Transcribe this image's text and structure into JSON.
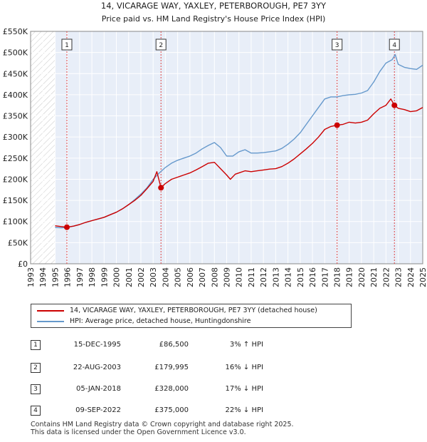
{
  "chart_data": {
    "type": "line",
    "title": "14, VICARAGE WAY, YAXLEY, PETERBOROUGH, PE7 3YY",
    "subtitle": "Price paid vs. HM Land Registry's House Price Index (HPI)",
    "xlabel": "",
    "ylabel": "",
    "xlim": [
      1993,
      2025
    ],
    "ylim": [
      0,
      550000
    ],
    "x_ticks": [
      1993,
      1994,
      1995,
      1996,
      1997,
      1998,
      1999,
      2000,
      2001,
      2002,
      2003,
      2004,
      2005,
      2006,
      2007,
      2008,
      2009,
      2010,
      2011,
      2012,
      2013,
      2014,
      2015,
      2016,
      2017,
      2018,
      2019,
      2020,
      2021,
      2022,
      2023,
      2024,
      2025
    ],
    "y_ticks": [
      0,
      50000,
      100000,
      150000,
      200000,
      250000,
      300000,
      350000,
      400000,
      450000,
      500000,
      550000
    ],
    "y_tick_labels": [
      "£0",
      "£50K",
      "£100K",
      "£150K",
      "£200K",
      "£250K",
      "£300K",
      "£350K",
      "£400K",
      "£450K",
      "£500K",
      "£550K"
    ],
    "grid": true,
    "hatched_before": 1995.0,
    "shaded_band_color": "#e8eef8",
    "series": [
      {
        "name": "14, VICARAGE WAY, YAXLEY, PETERBOROUGH, PE7 3YY (detached house)",
        "color": "#cc0000",
        "x": [
          1995.0,
          1995.5,
          1995.96,
          1996.5,
          1997.0,
          1997.5,
          1998.0,
          1998.5,
          1999.0,
          1999.5,
          2000.0,
          2000.5,
          2001.0,
          2001.5,
          2002.0,
          2002.5,
          2003.0,
          2003.3,
          2003.64,
          2004.0,
          2004.5,
          2005.0,
          2005.5,
          2006.0,
          2006.5,
          2007.0,
          2007.5,
          2008.0,
          2008.5,
          2009.0,
          2009.3,
          2009.7,
          2010.0,
          2010.5,
          2011.0,
          2011.5,
          2012.0,
          2012.5,
          2013.0,
          2013.5,
          2014.0,
          2014.5,
          2015.0,
          2015.5,
          2016.0,
          2016.5,
          2017.0,
          2017.5,
          2018.01,
          2018.5,
          2019.0,
          2019.5,
          2020.0,
          2020.5,
          2021.0,
          2021.5,
          2022.0,
          2022.4,
          2022.69,
          2023.0,
          2023.5,
          2024.0,
          2024.5,
          2025.0
        ],
        "values": [
          90000,
          88000,
          86500,
          89000,
          93000,
          98000,
          102000,
          106000,
          110000,
          116000,
          122000,
          130000,
          140000,
          150000,
          162000,
          178000,
          195000,
          218000,
          179995,
          190000,
          200000,
          205000,
          210000,
          215000,
          222000,
          230000,
          238000,
          240000,
          225000,
          210000,
          200000,
          212000,
          215000,
          220000,
          218000,
          220000,
          222000,
          224000,
          225000,
          230000,
          238000,
          248000,
          260000,
          272000,
          285000,
          300000,
          318000,
          325000,
          328000,
          330000,
          335000,
          333000,
          335000,
          340000,
          355000,
          368000,
          375000,
          390000,
          375000,
          368000,
          365000,
          360000,
          362000,
          370000
        ]
      },
      {
        "name": "HPI: Average price, detached house, Huntingdonshire",
        "color": "#6699cc",
        "x": [
          1995.0,
          1995.5,
          1996.0,
          1996.5,
          1997.0,
          1997.5,
          1998.0,
          1998.5,
          1999.0,
          1999.5,
          2000.0,
          2000.5,
          2001.0,
          2001.5,
          2002.0,
          2002.5,
          2003.0,
          2003.5,
          2004.0,
          2004.5,
          2005.0,
          2005.5,
          2006.0,
          2006.5,
          2007.0,
          2007.5,
          2008.0,
          2008.5,
          2009.0,
          2009.5,
          2010.0,
          2010.5,
          2011.0,
          2011.5,
          2012.0,
          2012.5,
          2013.0,
          2013.5,
          2014.0,
          2014.5,
          2015.0,
          2015.5,
          2016.0,
          2016.5,
          2017.0,
          2017.5,
          2018.0,
          2018.5,
          2019.0,
          2019.5,
          2020.0,
          2020.5,
          2021.0,
          2021.5,
          2022.0,
          2022.5,
          2022.75,
          2023.0,
          2023.5,
          2024.0,
          2024.5,
          2025.0
        ],
        "values": [
          86000,
          85000,
          86000,
          89000,
          93000,
          98000,
          102000,
          106000,
          110000,
          116000,
          122000,
          130000,
          140000,
          152000,
          165000,
          180000,
          200000,
          215000,
          228000,
          238000,
          245000,
          250000,
          255000,
          262000,
          272000,
          280000,
          287000,
          275000,
          255000,
          255000,
          265000,
          270000,
          262000,
          262000,
          263000,
          265000,
          267000,
          273000,
          283000,
          295000,
          310000,
          330000,
          350000,
          370000,
          390000,
          395000,
          395000,
          398000,
          400000,
          401000,
          404000,
          410000,
          430000,
          455000,
          475000,
          483000,
          495000,
          472000,
          465000,
          462000,
          460000,
          470000
        ]
      }
    ],
    "sale_markers": [
      {
        "label": "1",
        "x": 1995.96,
        "y": 86500
      },
      {
        "label": "2",
        "x": 2003.64,
        "y": 179995
      },
      {
        "label": "3",
        "x": 2018.01,
        "y": 328000
      },
      {
        "label": "4",
        "x": 2022.69,
        "y": 375000
      }
    ]
  },
  "sales": [
    {
      "num": "1",
      "date": "15-DEC-1995",
      "price": "£86,500",
      "hpi": "3% ↑ HPI"
    },
    {
      "num": "2",
      "date": "22-AUG-2003",
      "price": "£179,995",
      "hpi": "16% ↓ HPI"
    },
    {
      "num": "3",
      "date": "05-JAN-2018",
      "price": "£328,000",
      "hpi": "17% ↓ HPI"
    },
    {
      "num": "4",
      "date": "09-SEP-2022",
      "price": "£375,000",
      "hpi": "22% ↓ HPI"
    }
  ],
  "footer": {
    "line1": "Contains HM Land Registry data © Crown copyright and database right 2025.",
    "line2": "This data is licensed under the Open Government Licence v3.0."
  }
}
